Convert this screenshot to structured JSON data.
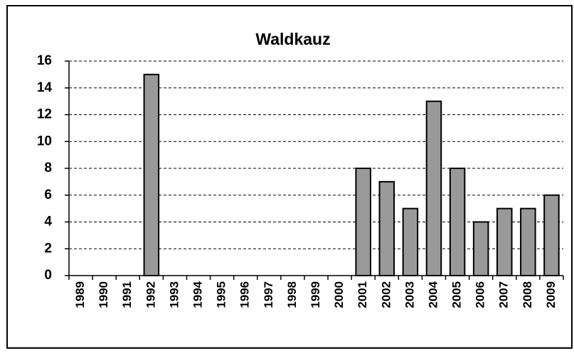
{
  "chart_data": {
    "type": "bar",
    "title": "Waldkauz",
    "categories": [
      "1989",
      "1990",
      "1991",
      "1992",
      "1993",
      "1994",
      "1995",
      "1996",
      "1997",
      "1998",
      "1999",
      "2000",
      "2001",
      "2002",
      "2003",
      "2004",
      "2005",
      "2006",
      "2007",
      "2008",
      "2009"
    ],
    "values": [
      0,
      0,
      0,
      15,
      0,
      0,
      0,
      0,
      0,
      0,
      0,
      0,
      8,
      7,
      5,
      13,
      8,
      4,
      5,
      5,
      6
    ],
    "color": "#999999",
    "ylim": [
      0,
      16
    ],
    "yticks": [
      0,
      2,
      4,
      6,
      8,
      10,
      12,
      14,
      16
    ],
    "grid": true
  }
}
